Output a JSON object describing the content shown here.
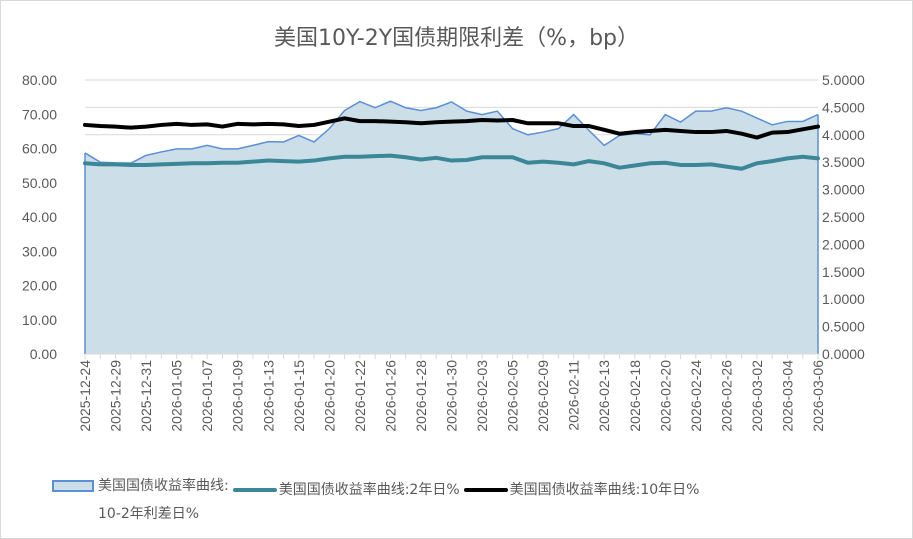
{
  "chart_data": {
    "type": "line",
    "title": "美国10Y-2Y国债期限利差（%，bp）",
    "x": [
      "2025-12-24",
      "2025-12-26",
      "2025-12-29",
      "2025-12-30",
      "2025-12-31",
      "2026-01-02",
      "2026-01-05",
      "2026-01-06",
      "2026-01-07",
      "2026-01-08",
      "2026-01-09",
      "2026-01-12",
      "2026-01-13",
      "2026-01-14",
      "2026-01-15",
      "2026-01-16",
      "2026-01-20",
      "2026-01-21",
      "2026-01-22",
      "2026-01-23",
      "2026-01-26",
      "2026-01-27",
      "2026-01-28",
      "2026-01-29",
      "2026-01-30",
      "2026-02-02",
      "2026-02-03",
      "2026-02-04",
      "2026-02-05",
      "2026-02-06",
      "2026-02-09",
      "2026-02-10",
      "2026-02-11",
      "2026-02-12",
      "2026-02-13",
      "2026-02-17",
      "2026-02-18",
      "2026-02-19",
      "2026-02-20",
      "2026-02-23",
      "2026-02-24",
      "2026-02-25",
      "2026-02-26",
      "2026-02-27",
      "2026-03-02",
      "2026-03-03",
      "2026-03-04",
      "2026-03-05",
      "2026-03-06"
    ],
    "x_tick_labels": [
      "2025-12-24",
      "2025-12-29",
      "2025-12-31",
      "2026-01-05",
      "2026-01-07",
      "2026-01-09",
      "2026-01-13",
      "2026-01-15",
      "2026-01-20",
      "2026-01-22",
      "2026-01-26",
      "2026-01-28",
      "2026-01-30",
      "2026-02-03",
      "2026-02-05",
      "2026-02-09",
      "2026-02-11",
      "2026-02-13",
      "2026-02-18",
      "2026-02-20",
      "2026-02-24",
      "2026-02-26",
      "2026-03-02",
      "2026-03-04",
      "2026-03-06"
    ],
    "left_axis": {
      "ylim": [
        0,
        80
      ],
      "ticks": [
        "0.00",
        "10.00",
        "20.00",
        "30.00",
        "40.00",
        "50.00",
        "60.00",
        "70.00",
        "80.00"
      ]
    },
    "right_axis": {
      "ylim": [
        0,
        5
      ],
      "ticks": [
        "0.0000",
        "0.5000",
        "1.0000",
        "1.5000",
        "2.0000",
        "2.5000",
        "3.0000",
        "3.5000",
        "4.0000",
        "4.5000",
        "5.0000"
      ]
    },
    "grid": true,
    "legend_position": "bottom",
    "series": [
      {
        "name": "美国国债收益率曲线:10-2年利差日%",
        "type": "area",
        "axis": "left",
        "color": "#5b8fd6",
        "fill": "#ccdfe8",
        "values": [
          58.7,
          56.0,
          55.8,
          55.7,
          58.0,
          59.0,
          59.9,
          59.9,
          60.9,
          59.9,
          59.9,
          60.9,
          62.0,
          61.9,
          63.8,
          61.9,
          65.8,
          71.1,
          73.7,
          71.9,
          73.8,
          71.9,
          71.1,
          71.9,
          73.6,
          70.9,
          69.9,
          70.9,
          65.8,
          64.0,
          64.8,
          65.8,
          69.9,
          65.3,
          60.9,
          63.8,
          64.3,
          64.0,
          69.9,
          67.7,
          70.9,
          70.9,
          71.9,
          70.9,
          68.9,
          66.9,
          67.9,
          67.9,
          69.9
        ]
      },
      {
        "name": "美国国债收益率曲线:2年日%",
        "type": "line",
        "axis": "right",
        "color": "#3b8798",
        "values": [
          3.48,
          3.46,
          3.46,
          3.45,
          3.45,
          3.46,
          3.47,
          3.48,
          3.48,
          3.49,
          3.49,
          3.51,
          3.53,
          3.52,
          3.51,
          3.53,
          3.57,
          3.6,
          3.6,
          3.61,
          3.62,
          3.59,
          3.55,
          3.58,
          3.53,
          3.54,
          3.59,
          3.59,
          3.59,
          3.49,
          3.51,
          3.49,
          3.46,
          3.52,
          3.48,
          3.4,
          3.44,
          3.48,
          3.49,
          3.45,
          3.45,
          3.46,
          3.42,
          3.38,
          3.48,
          3.52,
          3.57,
          3.6,
          3.57
        ]
      },
      {
        "name": "美国国债收益率曲线:10年日%",
        "type": "line",
        "axis": "right",
        "color": "#000000",
        "values": [
          4.18,
          4.16,
          4.15,
          4.13,
          4.15,
          4.18,
          4.2,
          4.18,
          4.19,
          4.15,
          4.2,
          4.19,
          4.2,
          4.19,
          4.16,
          4.18,
          4.24,
          4.3,
          4.25,
          4.25,
          4.24,
          4.23,
          4.21,
          4.23,
          4.24,
          4.25,
          4.27,
          4.26,
          4.27,
          4.21,
          4.21,
          4.21,
          4.16,
          4.16,
          4.09,
          4.02,
          4.05,
          4.07,
          4.09,
          4.07,
          4.05,
          4.05,
          4.07,
          4.02,
          3.95,
          4.04,
          4.05,
          4.1,
          4.15
        ]
      }
    ]
  },
  "legend": {
    "area_label": "美国国债收益率曲线:",
    "area_label_line2": "10-2年利差日%",
    "two_year_label": "美国国债收益率曲线:2年日%",
    "ten_year_label": "美国国债收益率曲线:10年日%"
  }
}
